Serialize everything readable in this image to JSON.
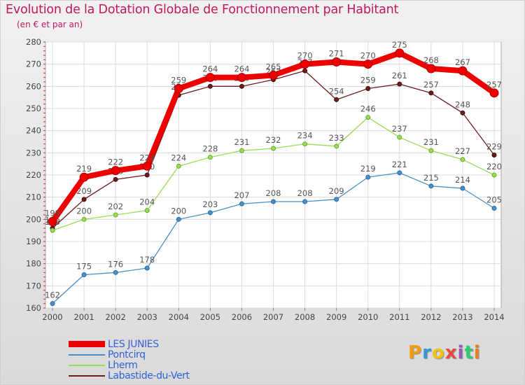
{
  "chart_data": {
    "type": "line",
    "title": "Evolution de la Dotation Globale de Fonctionnement par Habitant",
    "subtitle": "(en € et par an)",
    "xlabel": "",
    "ylabel": "",
    "categories": [
      "2000",
      "2001",
      "2002",
      "2003",
      "2004",
      "2005",
      "2006",
      "2007",
      "2008",
      "2009",
      "2010",
      "2011",
      "2012",
      "2013",
      "2014"
    ],
    "ylim": [
      160,
      280
    ],
    "yticks": [
      160,
      170,
      180,
      190,
      200,
      210,
      220,
      230,
      240,
      250,
      260,
      270,
      280
    ],
    "grid": true,
    "legend_position": "bottom-left",
    "series": [
      {
        "name": "Labastide-du-Vert",
        "color": "#6d1c1c",
        "values": [
          196,
          209,
          218,
          220,
          256,
          260,
          260,
          263,
          267,
          254,
          259,
          261,
          257,
          248,
          229
        ]
      },
      {
        "name": "Lherm",
        "color": "#99dd55",
        "values": [
          195,
          200,
          202,
          204,
          224,
          228,
          231,
          232,
          234,
          233,
          246,
          237,
          231,
          227,
          220
        ]
      },
      {
        "name": "Pontcirq",
        "color": "#4a90c8",
        "values": [
          162,
          175,
          176,
          178,
          200,
          203,
          207,
          208,
          208,
          209,
          219,
          221,
          215,
          214,
          205
        ]
      },
      {
        "name": "LES JUNIES",
        "color": "#ee0000",
        "values": [
          199,
          219,
          222,
          224,
          259,
          264,
          264,
          265,
          270,
          271,
          270,
          275,
          268,
          267,
          257
        ]
      }
    ]
  },
  "legend": {
    "items": [
      {
        "label": "LES JUNIES",
        "color": "#ee0000"
      },
      {
        "label": "Pontcirq",
        "color": "#4a90c8"
      },
      {
        "label": "Lherm",
        "color": "#99dd55"
      },
      {
        "label": "Labastide-du-Vert",
        "color": "#6d1c1c"
      }
    ]
  },
  "logo": {
    "letters": [
      "P",
      "r",
      "o",
      "x",
      "i",
      "t",
      "i"
    ],
    "colors": [
      "#f39c12",
      "#3498db",
      "#f1c40f",
      "#e74c3c",
      "#9b59b6",
      "#2ecc71",
      "#e67e22"
    ]
  }
}
